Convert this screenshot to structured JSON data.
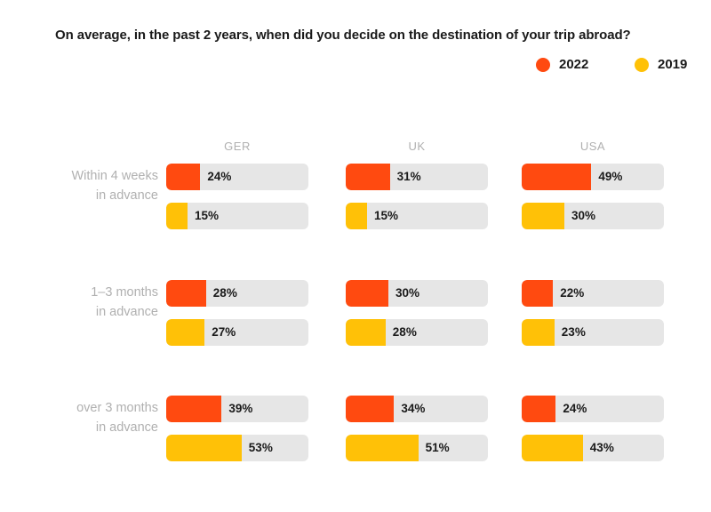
{
  "chart_data": {
    "type": "bar",
    "title": "On average, in the past 2 years, when did you decide on the destination of your trip abroad?",
    "categories": [
      "Within 4 weeks in advance",
      "1–3 months in advance",
      "over 3 months in advance"
    ],
    "category_lines": [
      [
        "Within 4 weeks",
        "in advance"
      ],
      [
        "1–3 months",
        "in advance"
      ],
      [
        "over 3 months",
        "in advance"
      ]
    ],
    "panels": [
      "GER",
      "UK",
      "USA"
    ],
    "series": [
      {
        "name": "2022",
        "color": "#ff4a10",
        "values": {
          "GER": [
            24,
            28,
            39
          ],
          "UK": [
            31,
            30,
            34
          ],
          "USA": [
            49,
            22,
            24
          ]
        }
      },
      {
        "name": "2019",
        "color": "#ffc107",
        "values": {
          "GER": [
            15,
            27,
            53
          ],
          "UK": [
            15,
            28,
            51
          ],
          "USA": [
            30,
            23,
            43
          ]
        }
      }
    ],
    "value_suffix": "%",
    "xlim": [
      0,
      100
    ],
    "legend_position": "top-right",
    "grid": false
  }
}
